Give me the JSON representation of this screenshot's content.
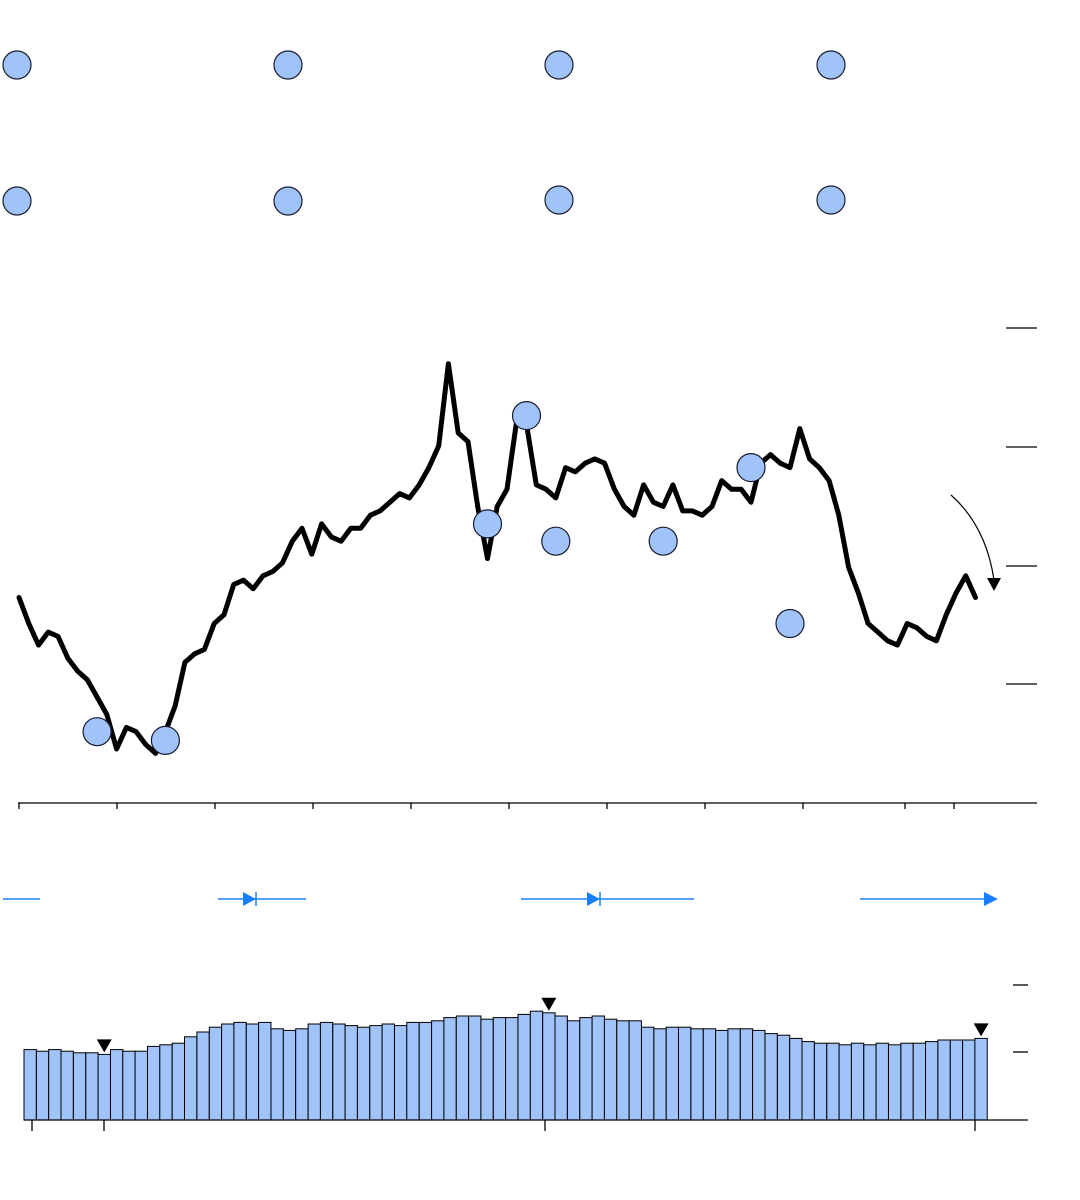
{
  "colors": {
    "line": "#000000",
    "marker_fill": "#a0c4f9",
    "marker_stroke": "#1a1a2e",
    "bar_fill": "#a0c4f9",
    "range_arrow": "#1a7fff"
  },
  "chart_data": [
    {
      "type": "line",
      "title": "",
      "xlabel": "",
      "ylabel": "",
      "xlim": [
        0,
        100
      ],
      "ylim": [
        0,
        100
      ],
      "y_gridlines": false,
      "x": [
        0,
        1,
        2,
        3,
        4,
        5,
        6,
        7,
        8,
        9,
        10,
        11,
        12,
        13,
        14,
        15,
        16,
        17,
        18,
        19,
        20,
        21,
        22,
        23,
        24,
        25,
        26,
        27,
        28,
        29,
        30,
        31,
        32,
        33,
        34,
        35,
        36,
        37,
        38,
        39,
        40,
        41,
        42,
        43,
        44,
        45,
        46,
        47,
        48,
        49,
        50,
        51,
        52,
        53,
        54,
        55,
        56,
        57,
        58,
        59,
        60,
        61,
        62,
        63,
        64,
        65,
        66,
        67,
        68,
        69,
        70,
        71,
        72,
        73,
        74,
        75,
        76,
        77,
        78,
        79,
        80,
        81,
        82,
        83,
        84,
        85,
        86,
        87,
        88,
        89,
        90,
        91,
        92,
        93,
        94,
        95,
        96,
        97,
        98
      ],
      "values": [
        41,
        35,
        30,
        33,
        32,
        27,
        24,
        22,
        18,
        14,
        6,
        11,
        10,
        7,
        5,
        10,
        16,
        26,
        28,
        29,
        35,
        37,
        44,
        45,
        43,
        46,
        47,
        49,
        54,
        57,
        51,
        58,
        55,
        54,
        57,
        57,
        60,
        61,
        63,
        65,
        64,
        67,
        71,
        76,
        95,
        79,
        77,
        62,
        50,
        62,
        66,
        82,
        81,
        67,
        66,
        64,
        71,
        70,
        72,
        73,
        72,
        66,
        62,
        60,
        67,
        63,
        62,
        67,
        61,
        61,
        60,
        62,
        68,
        66,
        66,
        63,
        72,
        74,
        72,
        71,
        80,
        73,
        71,
        68,
        60,
        48,
        42,
        35,
        33,
        31,
        30,
        35,
        34,
        32,
        31,
        37,
        42,
        46,
        41
      ],
      "markers": [
        {
          "x": 8,
          "y": 10
        },
        {
          "x": 15,
          "y": 8
        },
        {
          "x": 48,
          "y": 58
        },
        {
          "x": 52,
          "y": 83
        },
        {
          "x": 55,
          "y": 54
        },
        {
          "x": 66,
          "y": 54
        },
        {
          "x": 75,
          "y": 71
        },
        {
          "x": 79,
          "y": 35
        }
      ]
    },
    {
      "type": "bar",
      "title": "",
      "xlabel": "",
      "ylabel": "",
      "ylim": [
        0,
        100
      ],
      "values": [
        44,
        43,
        44,
        43,
        42,
        42,
        41,
        44,
        43,
        43,
        46,
        47,
        48,
        52,
        55,
        58,
        60,
        61,
        60,
        61,
        57,
        56,
        57,
        60,
        61,
        60,
        59,
        58,
        59,
        60,
        59,
        61,
        61,
        62,
        64,
        65,
        65,
        63,
        64,
        64,
        66,
        68,
        67,
        65,
        62,
        64,
        65,
        63,
        62,
        62,
        58,
        57,
        58,
        58,
        57,
        57,
        56,
        57,
        57,
        56,
        54,
        53,
        51,
        49,
        48,
        48,
        47,
        48,
        47,
        48,
        47,
        48,
        48,
        49,
        50,
        50,
        50,
        51
      ],
      "highlights": [
        6,
        42,
        77
      ]
    }
  ]
}
